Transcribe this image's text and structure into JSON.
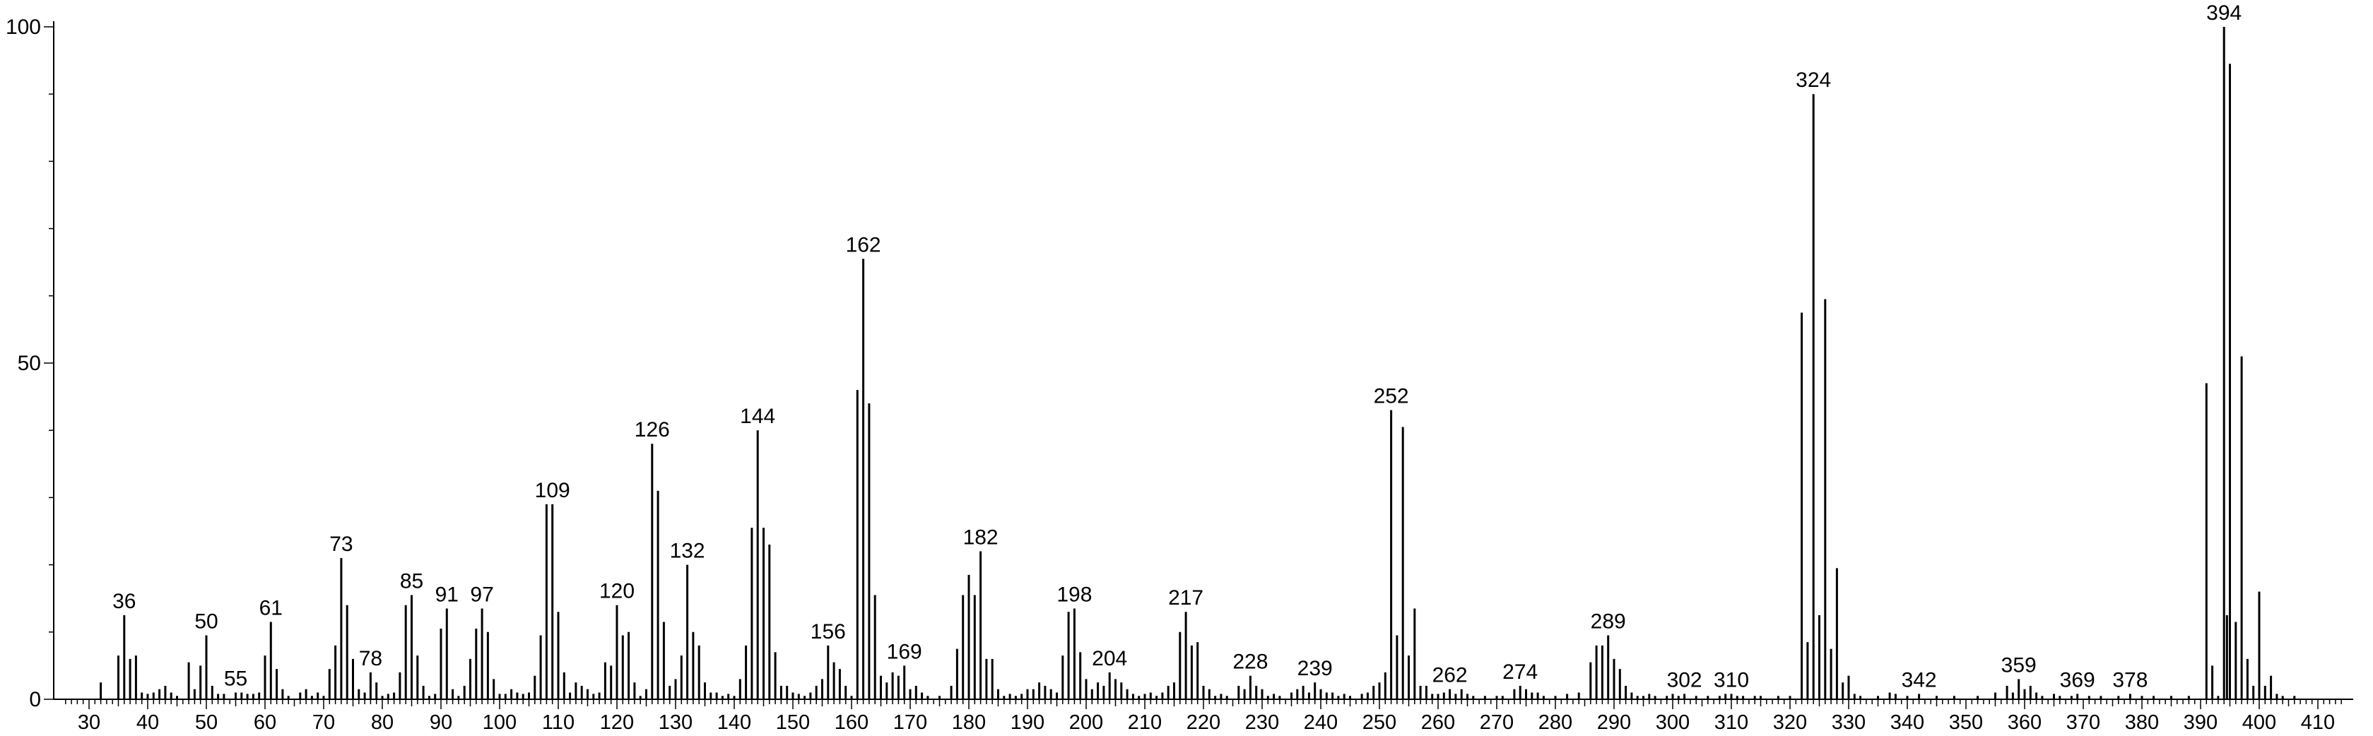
{
  "chart_data": {
    "type": "bar",
    "title": "",
    "xlabel": "",
    "ylabel": "",
    "xlim": [
      25,
      415
    ],
    "ylim": [
      0,
      100
    ],
    "x_ticks": [
      30,
      40,
      50,
      60,
      70,
      80,
      90,
      100,
      110,
      120,
      130,
      140,
      150,
      160,
      170,
      180,
      190,
      200,
      210,
      220,
      230,
      240,
      250,
      260,
      270,
      280,
      290,
      300,
      310,
      320,
      330,
      340,
      350,
      360,
      370,
      380,
      390,
      400,
      410
    ],
    "y_ticks": [
      0,
      50,
      100
    ],
    "grid": false,
    "series": [
      {
        "peaks": [
          [
            32,
            2.5
          ],
          [
            35,
            6.5
          ],
          [
            36,
            12.5
          ],
          [
            37,
            6
          ],
          [
            38,
            6.5
          ],
          [
            39,
            1
          ],
          [
            40,
            0.8
          ],
          [
            41,
            1
          ],
          [
            42,
            1.5
          ],
          [
            43,
            2
          ],
          [
            44,
            1
          ],
          [
            45,
            0.5
          ],
          [
            47,
            5.5
          ],
          [
            48,
            1.5
          ],
          [
            49,
            5
          ],
          [
            50,
            9.5
          ],
          [
            51,
            2
          ],
          [
            52,
            0.8
          ],
          [
            53,
            0.8
          ],
          [
            55,
            1
          ],
          [
            56,
            1
          ],
          [
            57,
            0.8
          ],
          [
            58,
            0.8
          ],
          [
            59,
            1
          ],
          [
            60,
            6.5
          ],
          [
            61,
            11.5
          ],
          [
            62,
            4.5
          ],
          [
            63,
            1.5
          ],
          [
            64,
            0.5
          ],
          [
            66,
            1
          ],
          [
            67,
            1.5
          ],
          [
            68,
            0.5
          ],
          [
            69,
            1
          ],
          [
            70,
            0.5
          ],
          [
            71,
            4.5
          ],
          [
            72,
            8
          ],
          [
            73,
            21
          ],
          [
            74,
            14
          ],
          [
            75,
            6
          ],
          [
            76,
            1.5
          ],
          [
            77,
            1
          ],
          [
            78,
            4
          ],
          [
            79,
            2.5
          ],
          [
            80,
            0.5
          ],
          [
            81,
            0.8
          ],
          [
            82,
            1
          ],
          [
            83,
            4
          ],
          [
            84,
            14
          ],
          [
            85,
            15.5
          ],
          [
            86,
            6.5
          ],
          [
            87,
            2
          ],
          [
            88,
            0.5
          ],
          [
            89,
            0.8
          ],
          [
            90,
            10.5
          ],
          [
            91,
            13.5
          ],
          [
            92,
            1.5
          ],
          [
            93,
            0.5
          ],
          [
            94,
            2
          ],
          [
            95,
            6
          ],
          [
            96,
            10.5
          ],
          [
            97,
            13.5
          ],
          [
            98,
            10
          ],
          [
            99,
            3
          ],
          [
            100,
            0.8
          ],
          [
            101,
            0.8
          ],
          [
            102,
            1.5
          ],
          [
            103,
            1
          ],
          [
            104,
            0.8
          ],
          [
            105,
            1
          ],
          [
            106,
            3.5
          ],
          [
            107,
            9.5
          ],
          [
            108,
            29
          ],
          [
            109,
            29
          ],
          [
            110,
            13
          ],
          [
            111,
            4
          ],
          [
            112,
            1
          ],
          [
            113,
            2.5
          ],
          [
            114,
            2
          ],
          [
            115,
            1.5
          ],
          [
            116,
            0.8
          ],
          [
            117,
            1
          ],
          [
            118,
            5.5
          ],
          [
            119,
            5
          ],
          [
            120,
            14
          ],
          [
            121,
            9.5
          ],
          [
            122,
            10
          ],
          [
            123,
            2.5
          ],
          [
            124,
            0.5
          ],
          [
            125,
            1.5
          ],
          [
            126,
            38
          ],
          [
            127,
            31
          ],
          [
            128,
            11.5
          ],
          [
            129,
            2
          ],
          [
            130,
            3
          ],
          [
            131,
            6.5
          ],
          [
            132,
            20
          ],
          [
            133,
            10
          ],
          [
            134,
            8
          ],
          [
            135,
            2.5
          ],
          [
            136,
            1
          ],
          [
            137,
            1
          ],
          [
            138,
            0.5
          ],
          [
            139,
            0.8
          ],
          [
            140,
            0.5
          ],
          [
            141,
            3
          ],
          [
            142,
            8
          ],
          [
            143,
            25.5
          ],
          [
            144,
            40
          ],
          [
            145,
            25.5
          ],
          [
            146,
            23
          ],
          [
            147,
            7
          ],
          [
            148,
            2
          ],
          [
            149,
            2
          ],
          [
            150,
            1
          ],
          [
            151,
            0.8
          ],
          [
            152,
            0.5
          ],
          [
            153,
            1
          ],
          [
            154,
            2
          ],
          [
            155,
            3
          ],
          [
            156,
            8
          ],
          [
            157,
            5.5
          ],
          [
            158,
            4.5
          ],
          [
            159,
            2
          ],
          [
            160,
            0.5
          ],
          [
            161,
            46
          ],
          [
            162,
            65.5
          ],
          [
            163,
            44
          ],
          [
            164,
            15.5
          ],
          [
            165,
            3.5
          ],
          [
            166,
            2.5
          ],
          [
            167,
            4
          ],
          [
            168,
            3.5
          ],
          [
            169,
            5
          ],
          [
            170,
            1.5
          ],
          [
            171,
            2
          ],
          [
            172,
            1
          ],
          [
            173,
            0.5
          ],
          [
            175,
            0.5
          ],
          [
            177,
            2
          ],
          [
            178,
            7.5
          ],
          [
            179,
            15.5
          ],
          [
            180,
            18.5
          ],
          [
            181,
            15.5
          ],
          [
            182,
            22
          ],
          [
            183,
            6
          ],
          [
            184,
            6
          ],
          [
            185,
            1.5
          ],
          [
            186,
            0.5
          ],
          [
            187,
            0.8
          ],
          [
            188,
            0.5
          ],
          [
            189,
            0.8
          ],
          [
            190,
            1.5
          ],
          [
            191,
            1.5
          ],
          [
            192,
            2.5
          ],
          [
            193,
            2
          ],
          [
            194,
            1.5
          ],
          [
            195,
            1
          ],
          [
            196,
            6.5
          ],
          [
            197,
            13
          ],
          [
            198,
            13.5
          ],
          [
            199,
            7
          ],
          [
            200,
            3
          ],
          [
            201,
            1.5
          ],
          [
            202,
            2.5
          ],
          [
            203,
            2
          ],
          [
            204,
            4
          ],
          [
            205,
            3
          ],
          [
            206,
            2.5
          ],
          [
            207,
            1.5
          ],
          [
            208,
            0.8
          ],
          [
            209,
            0.5
          ],
          [
            210,
            0.8
          ],
          [
            211,
            1
          ],
          [
            212,
            0.5
          ],
          [
            213,
            1
          ],
          [
            214,
            2
          ],
          [
            215,
            2.5
          ],
          [
            216,
            10
          ],
          [
            217,
            13
          ],
          [
            218,
            8
          ],
          [
            219,
            8.5
          ],
          [
            220,
            2
          ],
          [
            221,
            1.5
          ],
          [
            222,
            0.5
          ],
          [
            223,
            0.8
          ],
          [
            224,
            0.5
          ],
          [
            226,
            2
          ],
          [
            227,
            1.5
          ],
          [
            228,
            3.5
          ],
          [
            229,
            2
          ],
          [
            230,
            1.5
          ],
          [
            231,
            0.5
          ],
          [
            232,
            0.8
          ],
          [
            233,
            0.5
          ],
          [
            235,
            1
          ],
          [
            236,
            1.5
          ],
          [
            237,
            2
          ],
          [
            238,
            1
          ],
          [
            239,
            2.5
          ],
          [
            240,
            1.5
          ],
          [
            241,
            1
          ],
          [
            242,
            1
          ],
          [
            243,
            0.5
          ],
          [
            244,
            0.8
          ],
          [
            245,
            0.5
          ],
          [
            247,
            0.8
          ],
          [
            248,
            1
          ],
          [
            249,
            2
          ],
          [
            250,
            2.5
          ],
          [
            251,
            4
          ],
          [
            252,
            43
          ],
          [
            253,
            9.5
          ],
          [
            254,
            40.5
          ],
          [
            255,
            6.5
          ],
          [
            256,
            13.5
          ],
          [
            257,
            2
          ],
          [
            258,
            2
          ],
          [
            259,
            0.8
          ],
          [
            260,
            0.8
          ],
          [
            261,
            1
          ],
          [
            262,
            1.5
          ],
          [
            263,
            0.8
          ],
          [
            264,
            1.5
          ],
          [
            265,
            0.8
          ],
          [
            266,
            0.5
          ],
          [
            268,
            0.5
          ],
          [
            270,
            0.5
          ],
          [
            271,
            0.5
          ],
          [
            273,
            1.5
          ],
          [
            274,
            2
          ],
          [
            275,
            1.5
          ],
          [
            276,
            1
          ],
          [
            277,
            1
          ],
          [
            278,
            0.5
          ],
          [
            280,
            0.5
          ],
          [
            282,
            0.8
          ],
          [
            284,
            1
          ],
          [
            286,
            5.5
          ],
          [
            287,
            8
          ],
          [
            288,
            8
          ],
          [
            289,
            9.5
          ],
          [
            290,
            6
          ],
          [
            291,
            4.5
          ],
          [
            292,
            2
          ],
          [
            293,
            1
          ],
          [
            294,
            0.5
          ],
          [
            295,
            0.5
          ],
          [
            296,
            0.8
          ],
          [
            297,
            0.5
          ],
          [
            299,
            0.5
          ],
          [
            300,
            0.8
          ],
          [
            301,
            0.5
          ],
          [
            302,
            0.8
          ],
          [
            304,
            0.5
          ],
          [
            306,
            0.5
          ],
          [
            308,
            0.5
          ],
          [
            309,
            0.8
          ],
          [
            310,
            0.8
          ],
          [
            311,
            0.5
          ],
          [
            312,
            0.5
          ],
          [
            314,
            0.5
          ],
          [
            315,
            0.5
          ],
          [
            318,
            0.5
          ],
          [
            320,
            0.5
          ],
          [
            322,
            57.5
          ],
          [
            323,
            8.5
          ],
          [
            324,
            90
          ],
          [
            325,
            12.5
          ],
          [
            326,
            59.5
          ],
          [
            327,
            7.5
          ],
          [
            328,
            19.5
          ],
          [
            329,
            2.5
          ],
          [
            330,
            3.5
          ],
          [
            331,
            0.8
          ],
          [
            332,
            0.5
          ],
          [
            335,
            0.5
          ],
          [
            337,
            1
          ],
          [
            338,
            0.8
          ],
          [
            340,
            0.5
          ],
          [
            342,
            0.8
          ],
          [
            345,
            0.5
          ],
          [
            348,
            0.5
          ],
          [
            352,
            0.5
          ],
          [
            355,
            1
          ],
          [
            357,
            2
          ],
          [
            358,
            1
          ],
          [
            359,
            3
          ],
          [
            360,
            1.5
          ],
          [
            361,
            2
          ],
          [
            362,
            1
          ],
          [
            363,
            0.5
          ],
          [
            365,
            0.8
          ],
          [
            366,
            0.5
          ],
          [
            368,
            0.5
          ],
          [
            369,
            0.8
          ],
          [
            371,
            0.5
          ],
          [
            373,
            0.5
          ],
          [
            376,
            0.5
          ],
          [
            378,
            0.8
          ],
          [
            380,
            0.5
          ],
          [
            382,
            0.5
          ],
          [
            385,
            0.5
          ],
          [
            388,
            0.5
          ],
          [
            391,
            47
          ],
          [
            392,
            5
          ],
          [
            393,
            0.5
          ],
          [
            394,
            100
          ],
          [
            394.5,
            12.5
          ],
          [
            395,
            94.5
          ],
          [
            396,
            11.5
          ],
          [
            397,
            51
          ],
          [
            398,
            6
          ],
          [
            399,
            2
          ],
          [
            400,
            16
          ],
          [
            401,
            2
          ],
          [
            402,
            3.5
          ],
          [
            403,
            0.8
          ],
          [
            404,
            0.5
          ],
          [
            406,
            0.5
          ]
        ]
      }
    ],
    "peak_labels": [
      36,
      50,
      55,
      61,
      73,
      78,
      85,
      91,
      97,
      109,
      120,
      126,
      132,
      144,
      156,
      162,
      169,
      182,
      198,
      204,
      217,
      228,
      239,
      252,
      262,
      274,
      289,
      302,
      310,
      324,
      342,
      359,
      369,
      378,
      394
    ]
  }
}
